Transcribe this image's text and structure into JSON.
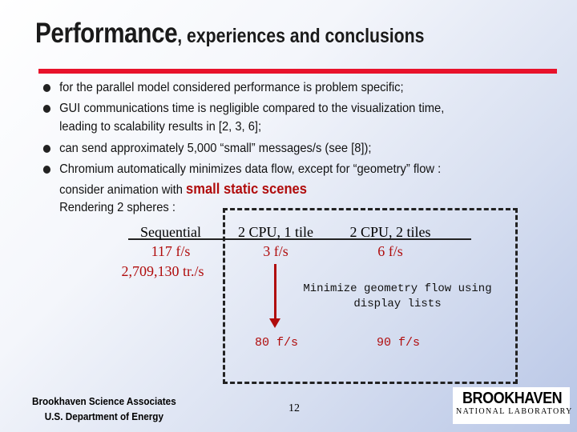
{
  "slide": {
    "title_main": "Performance",
    "title_rest": ", experiences and conclusions",
    "bullets": [
      "for the parallel model considered performance is problem specific;",
      "GUI communications time is negligible compared to the visualization time,",
      "can send approximately 5,000 “small” messages/s (see [8]);",
      "Chromium automatically minimizes data flow, except for “geometry” flow :"
    ],
    "bullet2_cont": "leading to scalability results in [2, 3, 6];",
    "bullet4_cont_prefix": "consider animation with",
    "bullet4_emph": "small static scenes",
    "rendering_label": "Rendering 2 spheres :",
    "columns": [
      {
        "header": "Sequential",
        "value": "117 f/s",
        "extra": "2,709,130 tr./s"
      },
      {
        "header": "2 CPU, 1 tile",
        "value": "3 f/s"
      },
      {
        "header": "2 CPU, 2 tiles",
        "value": "6 f/s"
      }
    ],
    "minimize_note_line1": "Minimize geometry flow using",
    "minimize_note_line2": "display lists",
    "optimized_results": [
      "80 f/s",
      "90 f/s"
    ],
    "footer_line1": "Brookhaven Science Associates",
    "footer_line2": "U.S. Department of Energy",
    "page_number": "12",
    "logo_line1": "BROOKHAVEN",
    "logo_line2": "NATIONAL LABORATORY"
  },
  "colors": {
    "accent_red": "#e8122b",
    "text_red": "#b00c0c"
  }
}
